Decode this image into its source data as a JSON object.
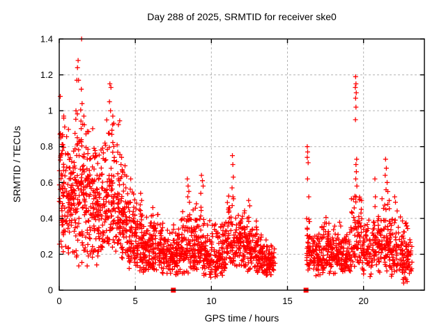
{
  "page": {
    "background": "#ffffff"
  },
  "chart_data": {
    "type": "scatter",
    "title": "Day 288 of 2025, SRMTID for receiver ske0",
    "xlabel": "GPS time / hours",
    "ylabel": "SRMTID / TECUs",
    "xlim": [
      0,
      24
    ],
    "ylim": [
      0,
      1.4
    ],
    "xticks": {
      "values": [
        0,
        5,
        10,
        15,
        20
      ],
      "labels": [
        "0",
        "5",
        "10",
        "15",
        "20"
      ]
    },
    "yticks": {
      "values": [
        0,
        0.2,
        0.4,
        0.6,
        0.8,
        1.0,
        1.2,
        1.4
      ],
      "labels": [
        "0",
        "0.2",
        "0.4",
        "0.6",
        "0.8",
        "1",
        "1.2",
        "1.4"
      ]
    },
    "grid": {
      "show": true,
      "color": "#b3b3b3",
      "dash": "3,3"
    },
    "frame_color": "#000000",
    "marker": {
      "shape": "plus",
      "color": "#ff0000",
      "size": 7
    },
    "axis_markers": {
      "shape": "filled-square",
      "color": "#ff0000",
      "size": 7,
      "points": [
        [
          7.5,
          0
        ],
        [
          16.22,
          0
        ]
      ]
    },
    "data_gap_hours": [
      14.2,
      16.25
    ],
    "seed": 1288,
    "density_bands": [
      {
        "x0": 0.0,
        "x1": 0.5,
        "n": 72,
        "lo": 0.2,
        "mode": 0.55,
        "hi": 1.0
      },
      {
        "x0": 0.5,
        "x1": 1.0,
        "n": 72,
        "lo": 0.13,
        "mode": 0.5,
        "hi": 0.92
      },
      {
        "x0": 1.0,
        "x1": 1.5,
        "n": 72,
        "lo": 0.12,
        "mode": 0.55,
        "hi": 1.1
      },
      {
        "x0": 1.5,
        "x1": 2.0,
        "n": 72,
        "lo": 0.13,
        "mode": 0.6,
        "hi": 1.0
      },
      {
        "x0": 2.0,
        "x1": 2.5,
        "n": 66,
        "lo": 0.13,
        "mode": 0.48,
        "hi": 0.88
      },
      {
        "x0": 2.5,
        "x1": 3.0,
        "n": 66,
        "lo": 0.15,
        "mode": 0.45,
        "hi": 0.8
      },
      {
        "x0": 3.0,
        "x1": 3.5,
        "n": 66,
        "lo": 0.17,
        "mode": 0.5,
        "hi": 0.95
      },
      {
        "x0": 3.5,
        "x1": 4.0,
        "n": 66,
        "lo": 0.15,
        "mode": 0.45,
        "hi": 1.0
      },
      {
        "x0": 4.0,
        "x1": 4.5,
        "n": 64,
        "lo": 0.13,
        "mode": 0.35,
        "hi": 0.72
      },
      {
        "x0": 4.5,
        "x1": 5.0,
        "n": 64,
        "lo": 0.11,
        "mode": 0.3,
        "hi": 0.58
      },
      {
        "x0": 5.0,
        "x1": 5.5,
        "n": 60,
        "lo": 0.1,
        "mode": 0.28,
        "hi": 0.52
      },
      {
        "x0": 5.5,
        "x1": 6.0,
        "n": 60,
        "lo": 0.09,
        "mode": 0.25,
        "hi": 0.46
      },
      {
        "x0": 6.0,
        "x1": 6.5,
        "n": 58,
        "lo": 0.09,
        "mode": 0.24,
        "hi": 0.48
      },
      {
        "x0": 6.5,
        "x1": 7.0,
        "n": 56,
        "lo": 0.08,
        "mode": 0.22,
        "hi": 0.4
      },
      {
        "x0": 7.0,
        "x1": 7.5,
        "n": 54,
        "lo": 0.07,
        "mode": 0.19,
        "hi": 0.36
      },
      {
        "x0": 7.5,
        "x1": 8.0,
        "n": 54,
        "lo": 0.07,
        "mode": 0.2,
        "hi": 0.38
      },
      {
        "x0": 8.0,
        "x1": 8.5,
        "n": 56,
        "lo": 0.08,
        "mode": 0.23,
        "hi": 0.46
      },
      {
        "x0": 8.5,
        "x1": 9.0,
        "n": 56,
        "lo": 0.09,
        "mode": 0.25,
        "hi": 0.5
      },
      {
        "x0": 9.0,
        "x1": 9.5,
        "n": 56,
        "lo": 0.08,
        "mode": 0.23,
        "hi": 0.52
      },
      {
        "x0": 9.5,
        "x1": 10.0,
        "n": 54,
        "lo": 0.07,
        "mode": 0.2,
        "hi": 0.42
      },
      {
        "x0": 10.0,
        "x1": 10.5,
        "n": 54,
        "lo": 0.07,
        "mode": 0.18,
        "hi": 0.38
      },
      {
        "x0": 10.5,
        "x1": 11.0,
        "n": 54,
        "lo": 0.07,
        "mode": 0.2,
        "hi": 0.42
      },
      {
        "x0": 11.0,
        "x1": 11.5,
        "n": 56,
        "lo": 0.09,
        "mode": 0.25,
        "hi": 0.55
      },
      {
        "x0": 11.5,
        "x1": 12.0,
        "n": 56,
        "lo": 0.11,
        "mode": 0.28,
        "hi": 0.48
      },
      {
        "x0": 12.0,
        "x1": 12.5,
        "n": 56,
        "lo": 0.09,
        "mode": 0.25,
        "hi": 0.48
      },
      {
        "x0": 12.5,
        "x1": 13.0,
        "n": 54,
        "lo": 0.09,
        "mode": 0.22,
        "hi": 0.42
      },
      {
        "x0": 13.0,
        "x1": 13.5,
        "n": 54,
        "lo": 0.07,
        "mode": 0.18,
        "hi": 0.33
      },
      {
        "x0": 13.5,
        "x1": 14.2,
        "n": 66,
        "lo": 0.06,
        "mode": 0.16,
        "hi": 0.3
      },
      {
        "x0": 16.25,
        "x1": 16.7,
        "n": 52,
        "lo": 0.09,
        "mode": 0.22,
        "hi": 0.42
      },
      {
        "x0": 16.7,
        "x1": 17.2,
        "n": 50,
        "lo": 0.07,
        "mode": 0.18,
        "hi": 0.36
      },
      {
        "x0": 17.2,
        "x1": 17.7,
        "n": 54,
        "lo": 0.09,
        "mode": 0.22,
        "hi": 0.43
      },
      {
        "x0": 17.7,
        "x1": 18.2,
        "n": 50,
        "lo": 0.07,
        "mode": 0.18,
        "hi": 0.38
      },
      {
        "x0": 18.2,
        "x1": 18.7,
        "n": 52,
        "lo": 0.08,
        "mode": 0.2,
        "hi": 0.4
      },
      {
        "x0": 18.7,
        "x1": 19.2,
        "n": 50,
        "lo": 0.07,
        "mode": 0.18,
        "hi": 0.38
      },
      {
        "x0": 19.2,
        "x1": 19.9,
        "n": 70,
        "lo": 0.09,
        "mode": 0.25,
        "hi": 0.55
      },
      {
        "x0": 19.9,
        "x1": 20.5,
        "n": 56,
        "lo": 0.07,
        "mode": 0.2,
        "hi": 0.42
      },
      {
        "x0": 20.5,
        "x1": 21.2,
        "n": 64,
        "lo": 0.09,
        "mode": 0.24,
        "hi": 0.5
      },
      {
        "x0": 21.2,
        "x1": 21.7,
        "n": 56,
        "lo": 0.09,
        "mode": 0.25,
        "hi": 0.6
      },
      {
        "x0": 21.7,
        "x1": 22.3,
        "n": 60,
        "lo": 0.07,
        "mode": 0.22,
        "hi": 0.48
      },
      {
        "x0": 22.3,
        "x1": 22.9,
        "n": 60,
        "lo": 0.03,
        "mode": 0.17,
        "hi": 0.42
      },
      {
        "x0": 22.9,
        "x1": 23.2,
        "n": 24,
        "lo": 0.05,
        "mode": 0.15,
        "hi": 0.32
      }
    ],
    "outlier_points": [
      [
        1.47,
        1.4
      ],
      [
        1.24,
        1.28
      ],
      [
        1.2,
        1.24
      ],
      [
        1.16,
        1.17
      ],
      [
        1.27,
        1.17
      ],
      [
        1.45,
        1.12
      ],
      [
        0.07,
        1.08
      ],
      [
        1.5,
        1.04
      ],
      [
        1.1,
        1.0
      ],
      [
        0.3,
        0.97
      ],
      [
        1.62,
        0.97
      ],
      [
        2.2,
        0.9
      ],
      [
        3.33,
        1.15
      ],
      [
        3.4,
        1.13
      ],
      [
        3.3,
        1.05
      ],
      [
        3.37,
        1.0
      ],
      [
        3.52,
        0.97
      ],
      [
        3.58,
        0.93
      ],
      [
        4.1,
        0.74
      ],
      [
        4.06,
        0.7
      ],
      [
        4.7,
        0.62
      ],
      [
        5.35,
        0.54
      ],
      [
        5.42,
        0.5
      ],
      [
        6.15,
        0.46
      ],
      [
        8.42,
        0.62
      ],
      [
        8.47,
        0.58
      ],
      [
        8.52,
        0.55
      ],
      [
        8.45,
        0.52
      ],
      [
        8.56,
        0.49
      ],
      [
        9.35,
        0.64
      ],
      [
        9.41,
        0.61
      ],
      [
        9.46,
        0.58
      ],
      [
        9.3,
        0.54
      ],
      [
        11.38,
        0.75
      ],
      [
        11.41,
        0.7
      ],
      [
        11.44,
        0.63
      ],
      [
        11.36,
        0.57
      ],
      [
        11.42,
        0.52
      ],
      [
        12.45,
        0.5
      ],
      [
        12.52,
        0.47
      ],
      [
        16.3,
        0.8
      ],
      [
        16.33,
        0.77
      ],
      [
        16.3,
        0.74
      ],
      [
        16.36,
        0.71
      ],
      [
        16.32,
        0.62
      ],
      [
        16.4,
        0.52
      ],
      [
        19.48,
        1.19
      ],
      [
        19.5,
        1.15
      ],
      [
        19.46,
        1.13
      ],
      [
        19.52,
        1.1
      ],
      [
        19.48,
        1.07
      ],
      [
        19.5,
        1.02
      ],
      [
        19.47,
        0.95
      ],
      [
        19.55,
        0.73
      ],
      [
        19.5,
        0.7
      ],
      [
        19.53,
        0.66
      ],
      [
        19.49,
        0.62
      ],
      [
        19.56,
        0.58
      ],
      [
        19.51,
        0.52
      ],
      [
        20.75,
        0.62
      ],
      [
        20.78,
        0.52
      ],
      [
        21.45,
        0.73
      ],
      [
        21.5,
        0.68
      ],
      [
        21.42,
        0.64
      ],
      [
        21.55,
        0.6
      ],
      [
        21.48,
        0.56
      ],
      [
        22.05,
        0.52
      ],
      [
        22.1,
        0.49
      ],
      [
        22.55,
        0.1
      ],
      [
        22.6,
        0.06
      ],
      [
        22.64,
        0.04
      ],
      [
        22.57,
        0.13
      ]
    ]
  }
}
